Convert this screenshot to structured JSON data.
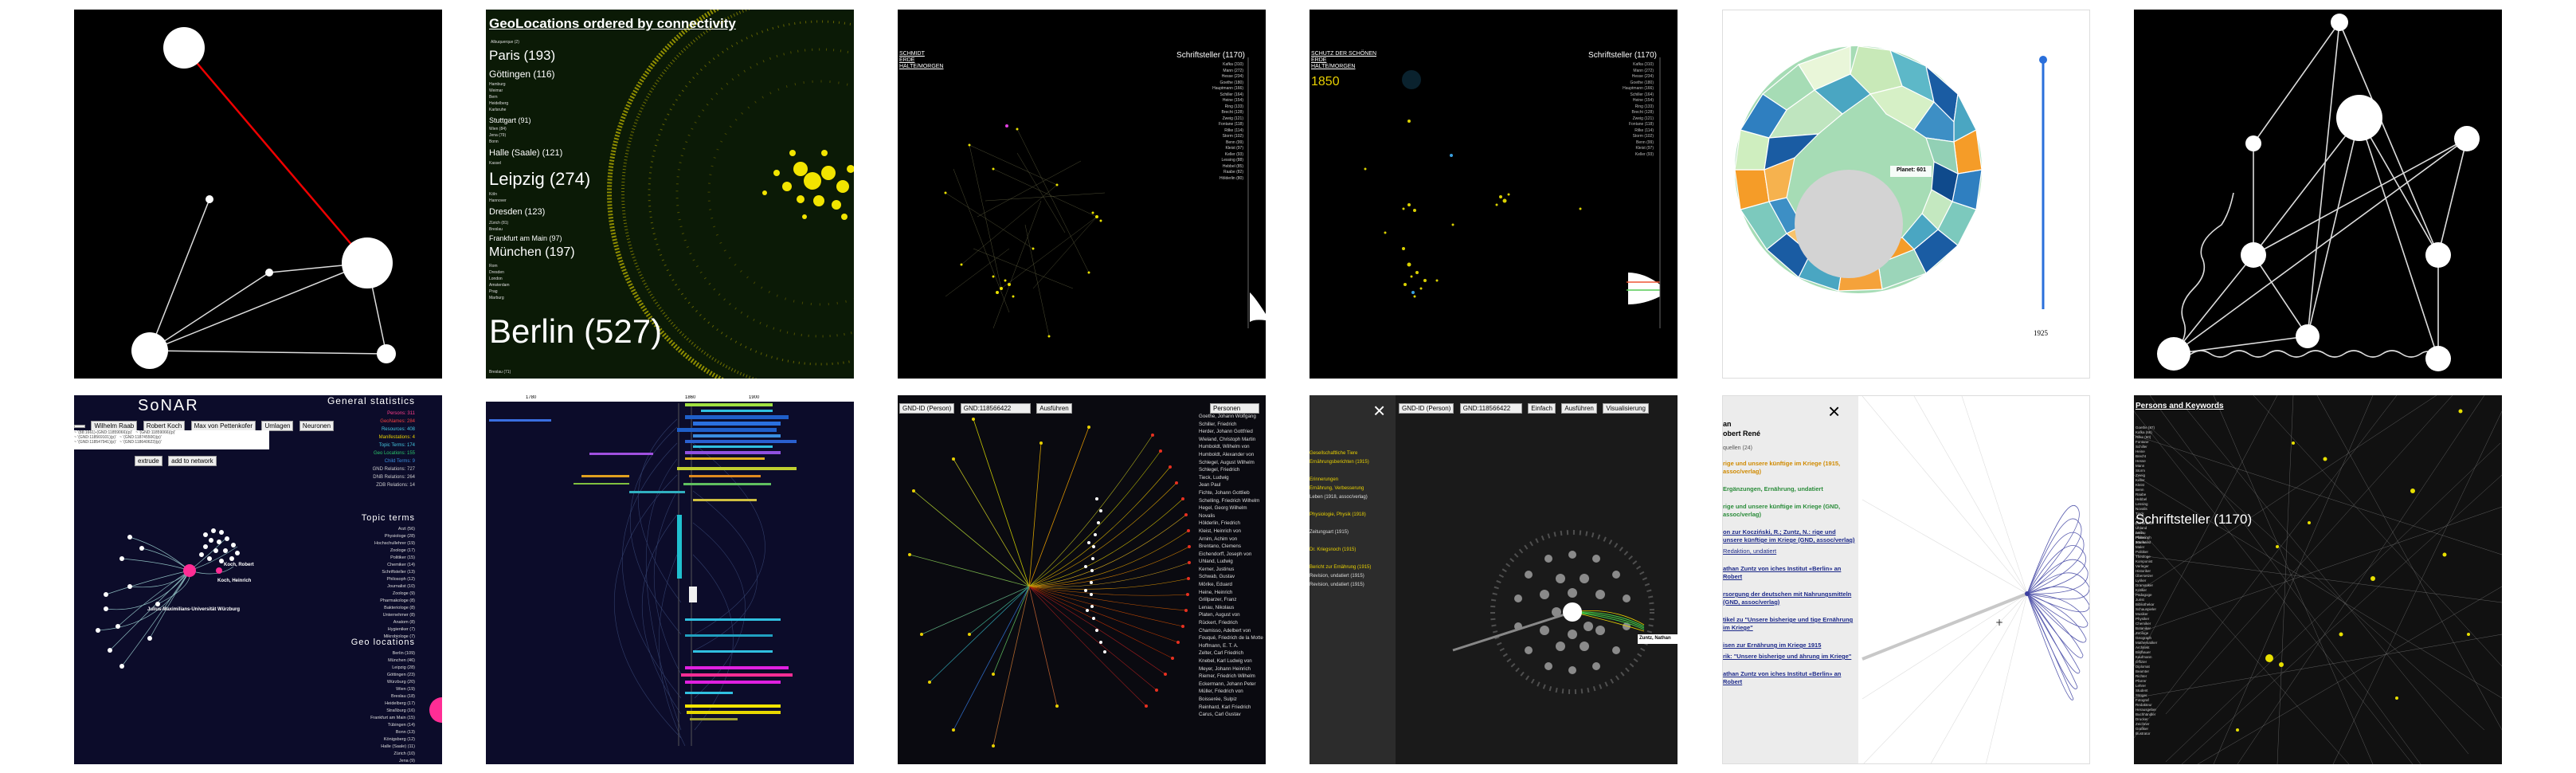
{
  "geolocations": {
    "title": "GeoLocations ordered by connectivity",
    "items": [
      {
        "label": "Paris (193)"
      },
      {
        "label": "Göttingen (116)"
      },
      {
        "label": "Stuttgart (91)"
      },
      {
        "label": "Halle (Saale) (121)"
      },
      {
        "label": "Leipzig (274)"
      },
      {
        "label": "Dresden (123)"
      },
      {
        "label": "Frankfurt am Main (97)"
      },
      {
        "label": "München (197)"
      },
      {
        "label": "Berlin (527)"
      }
    ]
  },
  "panel3": {
    "links": [
      "SCHMIDT",
      "ERDE",
      "HALTE/MORGEN"
    ],
    "heading": "Schriftsteller (1170)",
    "list": [
      "Kafka (310)",
      "Mann (272)",
      "Hesse (234)",
      "Goethe (180)",
      "Hauptmann (166)",
      "Schiller (164)",
      "Heine (154)",
      "Ring (133)",
      "Brecht (128)",
      "Zweig (121)",
      "Fontane (118)",
      "Rilke (114)",
      "Storm (102)",
      "Benn (99)",
      "Kleist (97)",
      "Keller (93)",
      "Lessing (88)",
      "Hebbel (85)",
      "Raabe (82)",
      "Hölderlin (80)"
    ]
  },
  "panel4": {
    "links": [
      "SCHUTZ DER SCHÖNEN",
      "ERDE",
      "HALTE/MORGEN"
    ],
    "year": "1850",
    "heading": "Schriftsteller (1170)"
  },
  "panel5": {
    "tooltip": "Planet: 601",
    "slider_year": "1925"
  },
  "sonar": {
    "title": "SoNAR",
    "tabs": [
      "Wilhelm Raab",
      "Robert Koch",
      "Max von Pettenkofer",
      "Umlagen",
      "Neuronen"
    ],
    "buttons": [
      "extrude",
      "add to network"
    ],
    "stats_heading": "General statistics",
    "stats": [
      "Persons: 311",
      "GeoNames: 284",
      "Resources: 408",
      "Manifestations: 4",
      "Topic Terms: 174",
      "Geo Locations: 155",
      "Child Terms: 9",
      "GND Relations: 727",
      "DNB Relations: 264",
      "ZDB Relations: 14"
    ],
    "topic_heading": "Topic terms",
    "topics": [
      "Arzt (56)",
      "Physiologe (28)",
      "Hochschullehrer (19)",
      "Zoologe (17)",
      "Politiker (15)",
      "Chemiker (14)",
      "Schriftsteller (13)",
      "Philosoph (12)",
      "Journalist (10)",
      "Zoologe (9)",
      "Pharmakologe (8)",
      "Bakteriologe (8)",
      "Unternehmer (8)",
      "Anatom (8)",
      "Hygieniker (7)",
      "Mikrobiologe (7)"
    ],
    "geo_heading": "Geo locations",
    "geos": [
      "Berlin (109)",
      "München (46)",
      "Leipzig (28)",
      "Göttingen (23)",
      "Würzburg (20)",
      "Wien (19)",
      "Breslau (18)",
      "Heidelberg (17)",
      "Straßburg (16)",
      "Frankfurt am Main (15)",
      "Tübingen (14)",
      "Bonn (13)",
      "Königsberg (12)",
      "Halle (Saale) (11)",
      "Zürich (10)",
      "Jena (9)"
    ],
    "node_labels": [
      "Koch, Heinrich",
      "Julius-Maximilians-Universität Würzburg",
      "Koch, Robert"
    ]
  },
  "timeline": {
    "ticks": [
      "1780",
      "1860",
      "1900"
    ]
  },
  "panel9": {
    "selector": "GND-ID (Person)",
    "input": "GND:118566422",
    "button": "Ausführen",
    "dropdown": "Personen",
    "names": [
      "Goethe, Johann Wolfgang",
      "Schiller, Friedrich",
      "Herder, Johann Gottfried",
      "Wieland, Christoph Martin",
      "Humboldt, Wilhelm von",
      "Humboldt, Alexander von",
      "Schlegel, August Wilhelm",
      "Schlegel, Friedrich",
      "Tieck, Ludwig",
      "Jean Paul",
      "Fichte, Johann Gottlieb",
      "Schelling, Friedrich Wilhelm",
      "Hegel, Georg Wilhelm",
      "Novalis",
      "Hölderlin, Friedrich",
      "Kleist, Heinrich von",
      "Arnim, Achim von",
      "Brentano, Clemens",
      "Eichendorff, Joseph von",
      "Uhland, Ludwig",
      "Kerner, Justinus",
      "Schwab, Gustav",
      "Mörike, Eduard",
      "Heine, Heinrich",
      "Grillparzer, Franz",
      "Lenau, Nikolaus",
      "Platen, August von",
      "Rückert, Friedrich",
      "Chamisso, Adelbert von",
      "Fouqué, Friedrich de la Motte",
      "Hoffmann, E. T. A.",
      "Zelter, Carl Friedrich",
      "Knebel, Karl Ludwig von",
      "Meyer, Johann Heinrich",
      "Riemer, Friedrich Wilhelm",
      "Eckermann, Johann Peter",
      "Müller, Friedrich von",
      "Boisserée, Sulpiz",
      "Reinhard, Karl Friedrich",
      "Carus, Carl Gustav"
    ]
  },
  "panel10": {
    "selector": "GND-ID (Person)",
    "input": "GND:118566422",
    "dropdown": "Einfach",
    "button": "Ausführen",
    "extra": "Visualisierung",
    "side": [
      "Gesellschaftliche Tiere",
      "Ernährungsberichten (1915)",
      "Erinnerungen",
      "Ernährung, Verbesserung",
      "Leben (1918, assoc/verlag)",
      "Physiologie, Physik (1918)",
      "Zeitungsart (1915)",
      "Dr. Kriegsnoch (1915)",
      "Bericht zur Ernährung (1915)",
      "Revision, undatiert (1915)",
      "Revision, undatiert (1915)"
    ],
    "node_label": "Zuntz, Nathan"
  },
  "panel11": {
    "head1": "an",
    "head2": "obert René",
    "note": "quellen (24)",
    "items": [
      "rige und unsere künftige im Kriege (1915, assoc/verlag)",
      "Ergänzungen, Ernährung, undatiert",
      "rige und unsere künftige im Kriege (GND, assoc/verlag)",
      "on zur Kocziński, R.; Zuntz, N.: rige und unsere künftige im Kriege (GND, assoc/verlag)",
      "Redaktion, undatiert",
      "athan Zuntz von iches Institut «Berlin» an Robert",
      "rsorgung der deutschen mit Nahrungsmitteln (GND, assoc/verlag)",
      "tikel zu \"Unsere bisherige und tige Ernährung im Kriege\"",
      "isen zur Ernährung im Kriege 1915",
      "rik: \"Unsere bisherige und ährung im Kriege\"",
      "athan Zuntz von iches Institut «Berlin» an Robert"
    ]
  },
  "panel12": {
    "title": "Persons and Keywords",
    "heading": "Schriftsteller (1170)"
  },
  "colors": {
    "yellow": "#f2e400",
    "red": "#e11b1b",
    "pink": "#ff2d95",
    "cyan": "#22c6d6",
    "blue": "#1f5fc9"
  }
}
